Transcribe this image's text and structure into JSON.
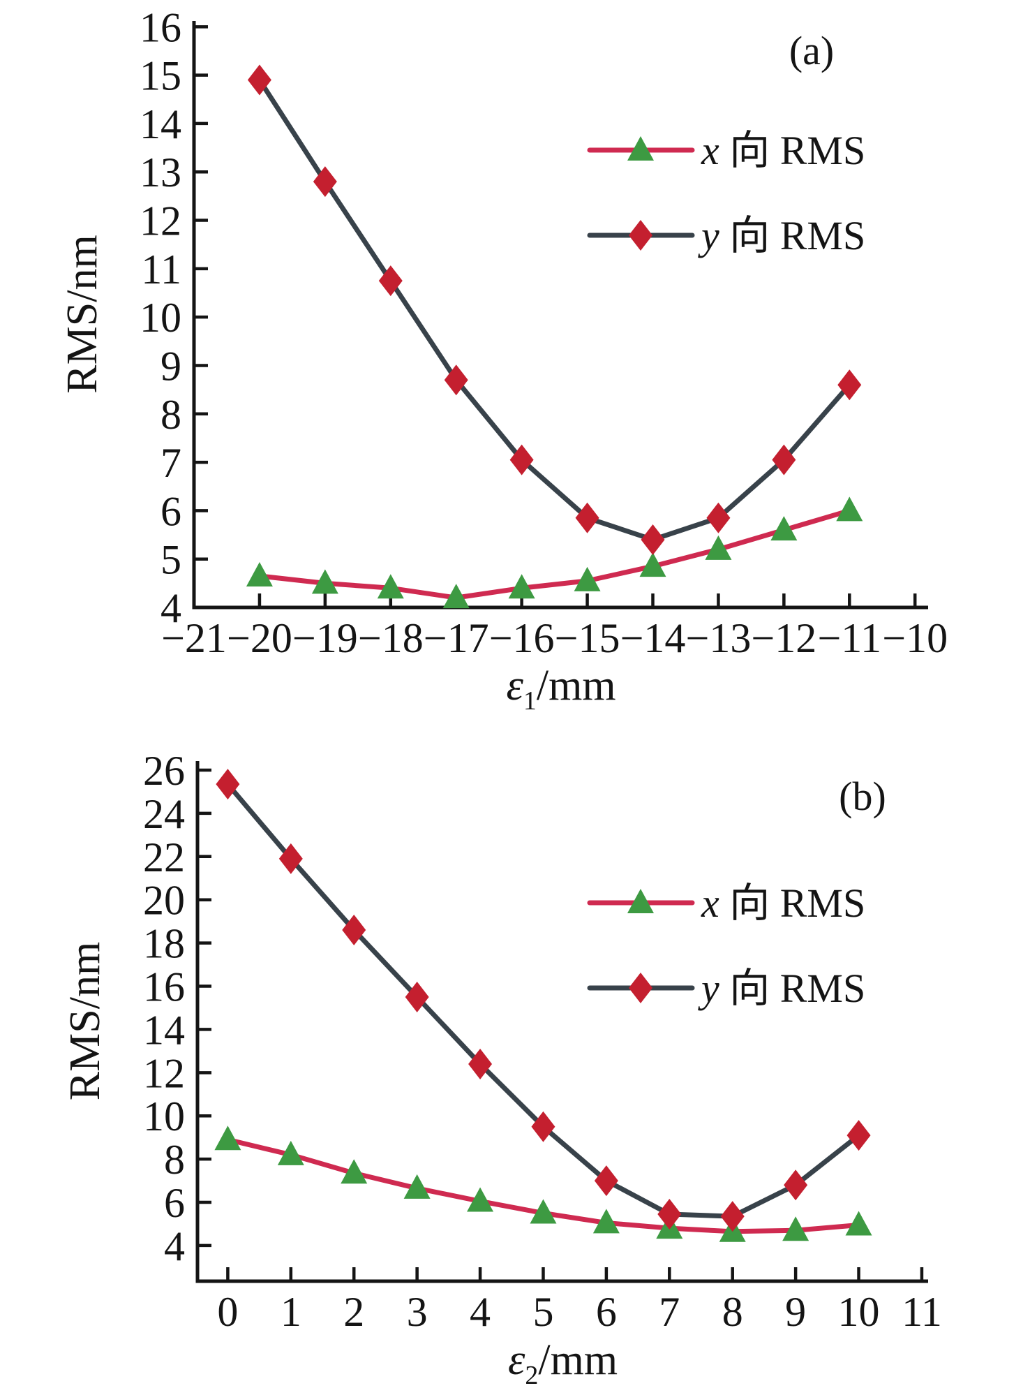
{
  "figure": {
    "background": "#ffffff",
    "text_color": "#141414"
  },
  "chart_data": [
    {
      "type": "line",
      "panel_label": "(a)",
      "ylabel": "RMS/nm",
      "xlabel": {
        "symbol": "ε",
        "sub": "1",
        "rest": "/mm"
      },
      "xlim": [
        -21,
        -9.8
      ],
      "ylim": [
        4,
        16.12
      ],
      "x_ticks": [
        -21,
        -20,
        -19,
        -18,
        -17,
        -16,
        -15,
        -14,
        -13,
        -12,
        -11,
        -10
      ],
      "y_ticks": [
        4,
        5,
        6,
        7,
        8,
        9,
        10,
        11,
        12,
        13,
        14,
        15,
        16
      ],
      "grid": false,
      "legend_position": "top-right-inside",
      "x": [
        -20,
        -19,
        -18,
        -17,
        -16,
        -15,
        -14,
        -13,
        -12,
        -11
      ],
      "series": [
        {
          "name_prefix": "x",
          "name_rest": " 向 RMS",
          "marker": "triangle",
          "marker_color": "#3d9a42",
          "line_color": "#cf2a50",
          "values": [
            4.65,
            4.5,
            4.4,
            4.2,
            4.4,
            4.55,
            4.85,
            5.2,
            5.6,
            6.0
          ]
        },
        {
          "name_prefix": "y",
          "name_rest": " 向 RMS",
          "marker": "diamond",
          "marker_color": "#c41f2f",
          "line_color": "#38424a",
          "values": [
            14.9,
            12.8,
            10.75,
            8.7,
            7.05,
            5.85,
            5.4,
            5.85,
            7.05,
            8.6
          ]
        }
      ]
    },
    {
      "type": "line",
      "panel_label": "(b)",
      "ylabel": "RMS/nm",
      "xlabel": {
        "symbol": "ε",
        "sub": "2",
        "rest": "/mm"
      },
      "xlim": [
        -0.48,
        11.1
      ],
      "ylim": [
        2.35,
        26.42
      ],
      "x_ticks": [
        0,
        1,
        2,
        3,
        4,
        5,
        6,
        7,
        8,
        9,
        10,
        11
      ],
      "y_ticks": [
        4,
        6,
        8,
        10,
        12,
        14,
        16,
        18,
        20,
        22,
        24,
        26
      ],
      "grid": false,
      "legend_position": "top-right-inside",
      "x": [
        0,
        1,
        2,
        3,
        4,
        5,
        6,
        7,
        8,
        9,
        10
      ],
      "series": [
        {
          "name_prefix": "x",
          "name_rest": " 向 RMS",
          "marker": "triangle",
          "marker_color": "#3d9a42",
          "line_color": "#cf2a50",
          "values": [
            8.9,
            8.2,
            7.35,
            6.65,
            6.05,
            5.5,
            5.05,
            4.8,
            4.65,
            4.7,
            4.95
          ]
        },
        {
          "name_prefix": "y",
          "name_rest": " 向 RMS",
          "marker": "diamond",
          "marker_color": "#c41f2f",
          "line_color": "#38424a",
          "values": [
            25.35,
            21.9,
            18.6,
            15.5,
            12.4,
            9.5,
            7.0,
            5.45,
            5.35,
            6.8,
            9.1
          ]
        }
      ]
    }
  ]
}
